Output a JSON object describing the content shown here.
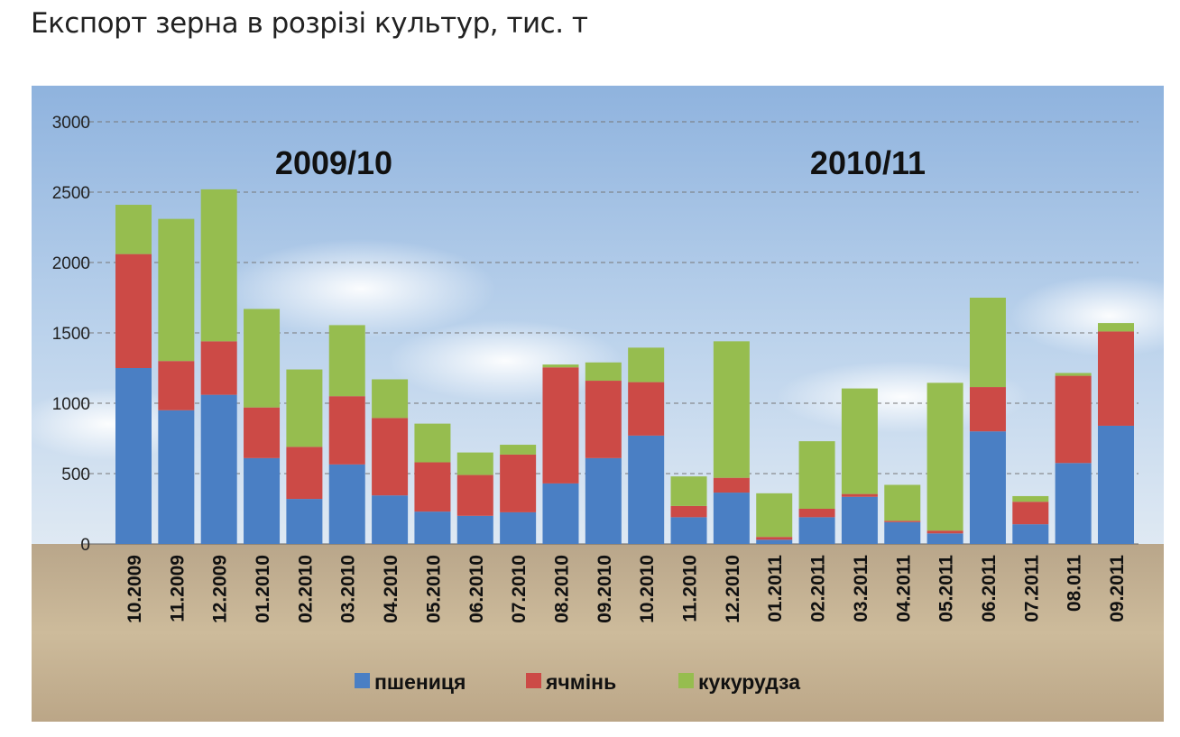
{
  "chart_data": {
    "type": "bar",
    "stacked": true,
    "title": "Експорт зерна в розрізі культур, тис. т",
    "xlabel": "",
    "ylabel": "",
    "ylim": [
      0,
      3000
    ],
    "yticks": [
      0,
      500,
      1000,
      1500,
      2000,
      2500,
      3000
    ],
    "grid": true,
    "legend_position": "bottom",
    "annotations": [
      "2009/10",
      "2010/11"
    ],
    "categories": [
      "10.2009",
      "11.2009",
      "12.2009",
      "01.2010",
      "02.2010",
      "03.2010",
      "04.2010",
      "05.2010",
      "06.2010",
      "07.2010",
      "08.2010",
      "09.2010",
      "10.2010",
      "11.2010",
      "12.2010",
      "01.2011",
      "02.2011",
      "03.2011",
      "04.2011",
      "05.2011",
      "06.2011",
      "07.2011",
      "08.011",
      "09.2011"
    ],
    "series": [
      {
        "name": "пшениця",
        "color": "#4a7fc4",
        "values": [
          1250,
          950,
          1060,
          610,
          320,
          565,
          345,
          230,
          200,
          225,
          430,
          610,
          770,
          190,
          365,
          30,
          190,
          335,
          155,
          75,
          800,
          140,
          575,
          840
        ]
      },
      {
        "name": "ячмінь",
        "color": "#cc4a46",
        "values": [
          810,
          350,
          380,
          360,
          370,
          485,
          550,
          350,
          290,
          410,
          825,
          550,
          380,
          80,
          105,
          20,
          60,
          20,
          10,
          20,
          315,
          160,
          620,
          670
        ]
      },
      {
        "name": "кукурудза",
        "color": "#96bd4f",
        "values": [
          350,
          1010,
          1080,
          700,
          550,
          505,
          275,
          275,
          160,
          70,
          20,
          130,
          245,
          210,
          970,
          310,
          480,
          750,
          255,
          1050,
          635,
          40,
          20,
          60
        ]
      }
    ]
  }
}
